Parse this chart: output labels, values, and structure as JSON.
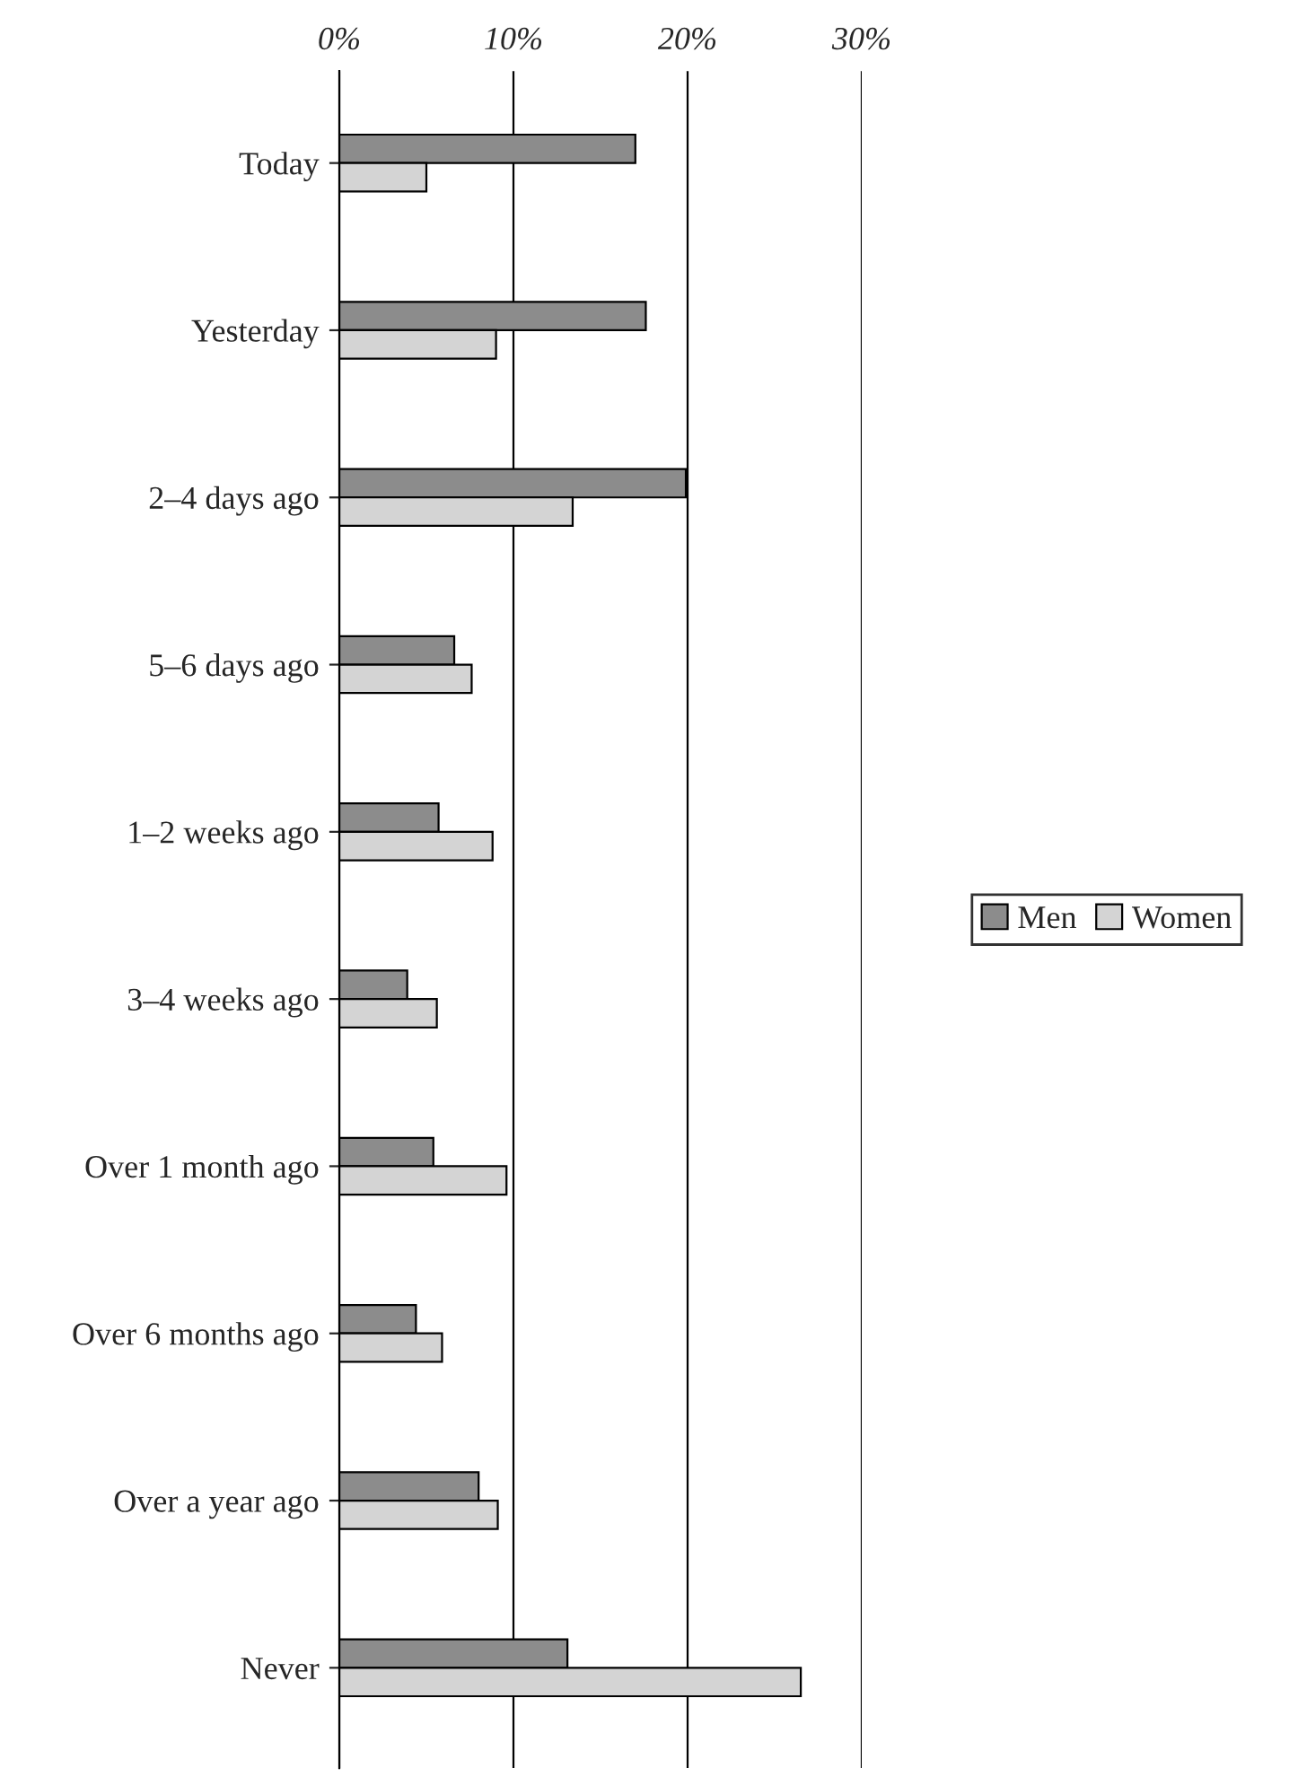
{
  "chart_data": {
    "type": "bar",
    "orientation": "horizontal",
    "categories": [
      "Today",
      "Yesterday",
      "2–4 days ago",
      "5–6 days ago",
      "1–2 weeks ago",
      "3–4 weeks ago",
      "Over 1 month ago",
      "Over 6 months ago",
      "Over a year ago",
      "Never"
    ],
    "series": [
      {
        "name": "Men",
        "color": "#8c8c8c",
        "values": [
          17.0,
          17.6,
          19.9,
          6.6,
          5.7,
          3.9,
          5.4,
          4.4,
          8.0,
          13.1
        ]
      },
      {
        "name": "Women",
        "color": "#d4d4d4",
        "values": [
          5.0,
          9.0,
          13.4,
          7.6,
          8.8,
          5.6,
          9.6,
          5.9,
          9.1,
          26.5
        ]
      }
    ],
    "xlim": [
      0,
      30
    ],
    "xticks": [
      {
        "value": 0,
        "label": "0%"
      },
      {
        "value": 10,
        "label": "10%"
      },
      {
        "value": 20,
        "label": "20%"
      },
      {
        "value": 30,
        "label": "30%"
      }
    ],
    "grid": "x",
    "legend": "right"
  }
}
